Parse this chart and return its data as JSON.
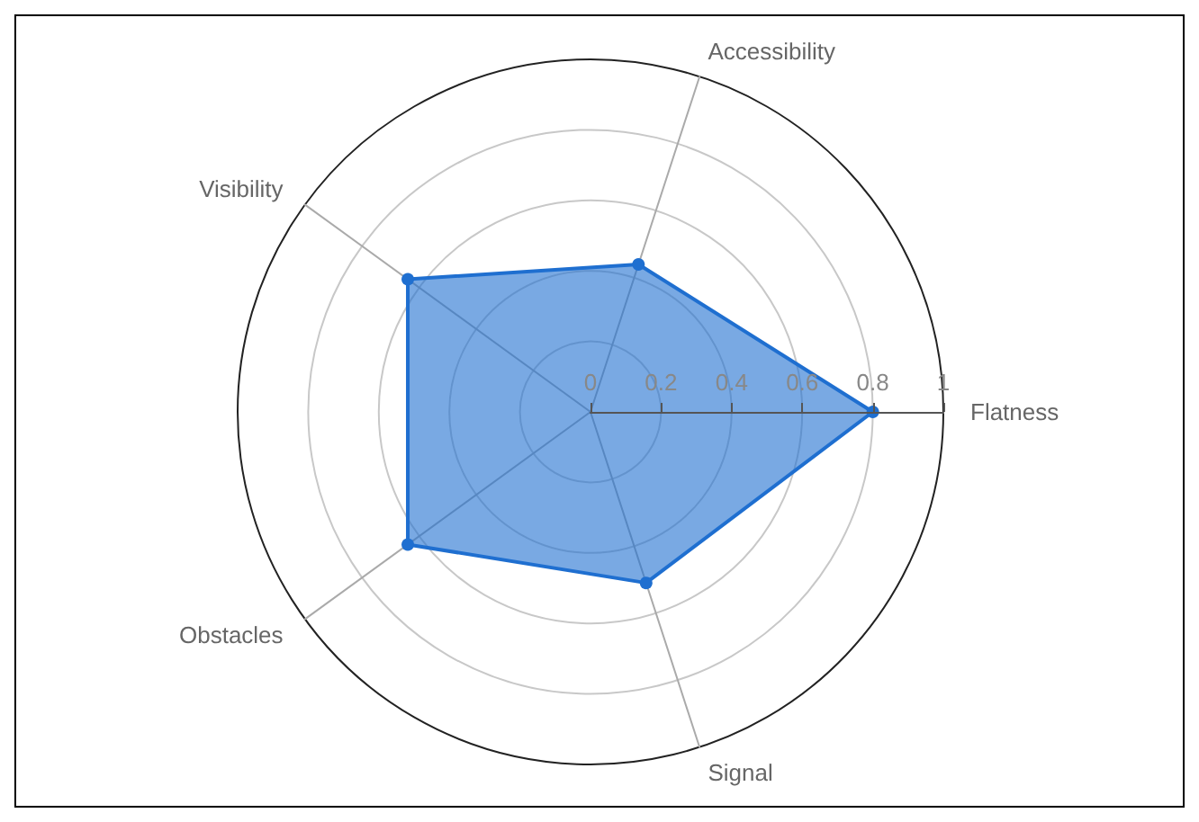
{
  "chart_data": {
    "type": "radar",
    "categories": [
      "Accessibility",
      "Flatness",
      "Signal",
      "Obstacles",
      "Visibility"
    ],
    "series": [
      {
        "color": "#1f6fd0",
        "values": [
          0.44,
          0.8,
          0.51,
          0.64,
          0.64
        ]
      }
    ],
    "ylim": [
      0,
      1
    ],
    "yticks": [
      0,
      0.2,
      0.4,
      0.6,
      0.8,
      1
    ],
    "marker": "circle",
    "grid": true
  }
}
